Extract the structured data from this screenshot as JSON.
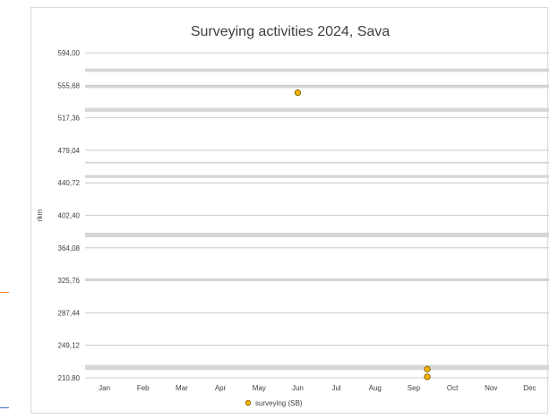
{
  "chart_data": {
    "type": "scatter",
    "title": "Surveying activities 2024, Sava",
    "ylabel": "rkm",
    "xlabel": "",
    "categories": [
      "Jan",
      "Feb",
      "Mar",
      "Apr",
      "May",
      "Jun",
      "Jul",
      "Aug",
      "Sep",
      "Oct",
      "Nov",
      "Dec"
    ],
    "ylim": [
      210.8,
      594.0
    ],
    "yticks": [
      "594,00",
      "555,68",
      "517,36",
      "479,04",
      "440,72",
      "402,40",
      "364,08",
      "325,76",
      "287,44",
      "249,12",
      "210,80"
    ],
    "legend_position": "bottom",
    "bands": [
      [
        571.5,
        575.5
      ],
      [
        552.5,
        555.0
      ],
      [
        524.5,
        529.0
      ],
      [
        463.5,
        465.5
      ],
      [
        446.5,
        450.0
      ],
      [
        376.5,
        382.0
      ],
      [
        325.0,
        328.0
      ],
      [
        220.0,
        226.0
      ]
    ],
    "series": [
      {
        "name": "surveying (SB)",
        "color": "#F4B400",
        "points": [
          {
            "month": 6.0,
            "rkm": 547.0
          },
          {
            "month": 9.35,
            "rkm": 221.0
          },
          {
            "month": 9.35,
            "rkm": 212.0
          }
        ]
      }
    ]
  }
}
